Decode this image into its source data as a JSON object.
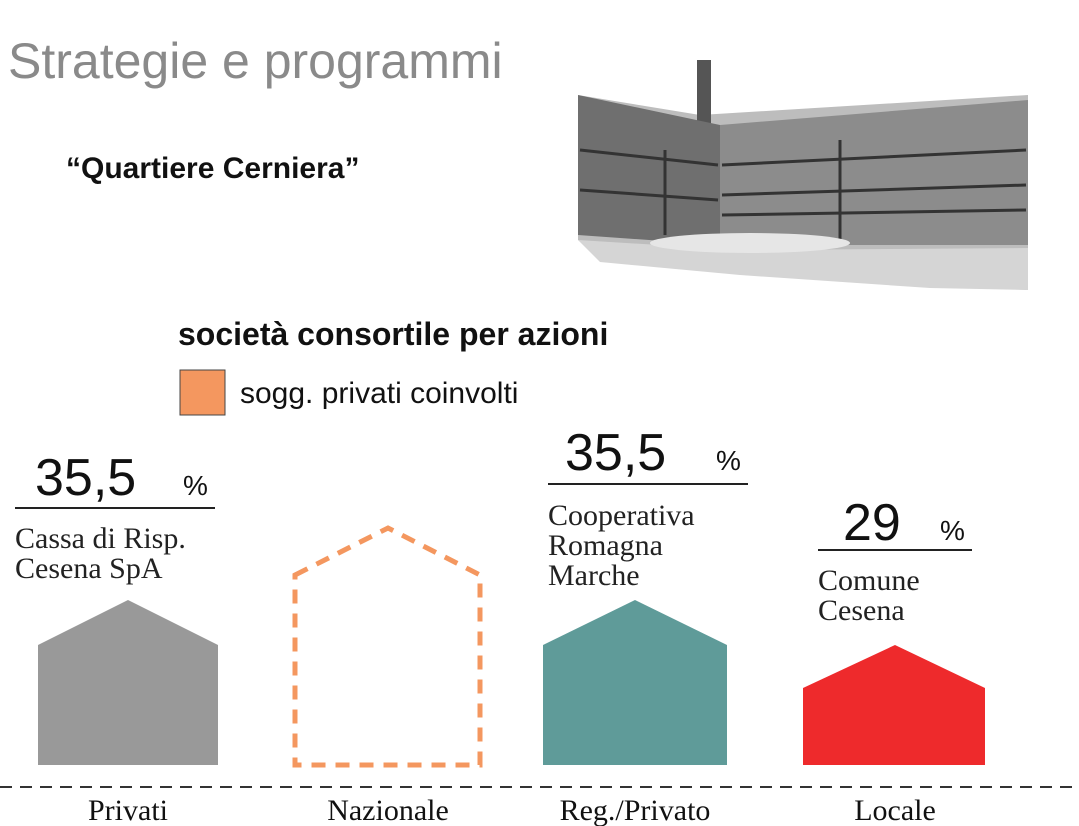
{
  "header": {
    "title": "Strategie e programmi",
    "subtitle": "“Quartiere Cerniera”"
  },
  "heading": "società consortile per azioni",
  "legend": {
    "label": "sogg. privati coinvolti"
  },
  "columns": [
    {
      "percent": "35,5",
      "unit": "%",
      "name_lines": [
        "Cassa di Risp.",
        "Cesena SpA"
      ],
      "category": "Privati"
    },
    {
      "category": "Nazionale"
    },
    {
      "percent": "35,5",
      "unit": "%",
      "name_lines": [
        "Cooperativa",
        "Romagna",
        "Marche"
      ],
      "category": "Reg./Privato"
    },
    {
      "percent": "29",
      "unit": "%",
      "name_lines": [
        "Comune",
        "Cesena"
      ],
      "category": "Locale"
    }
  ]
}
